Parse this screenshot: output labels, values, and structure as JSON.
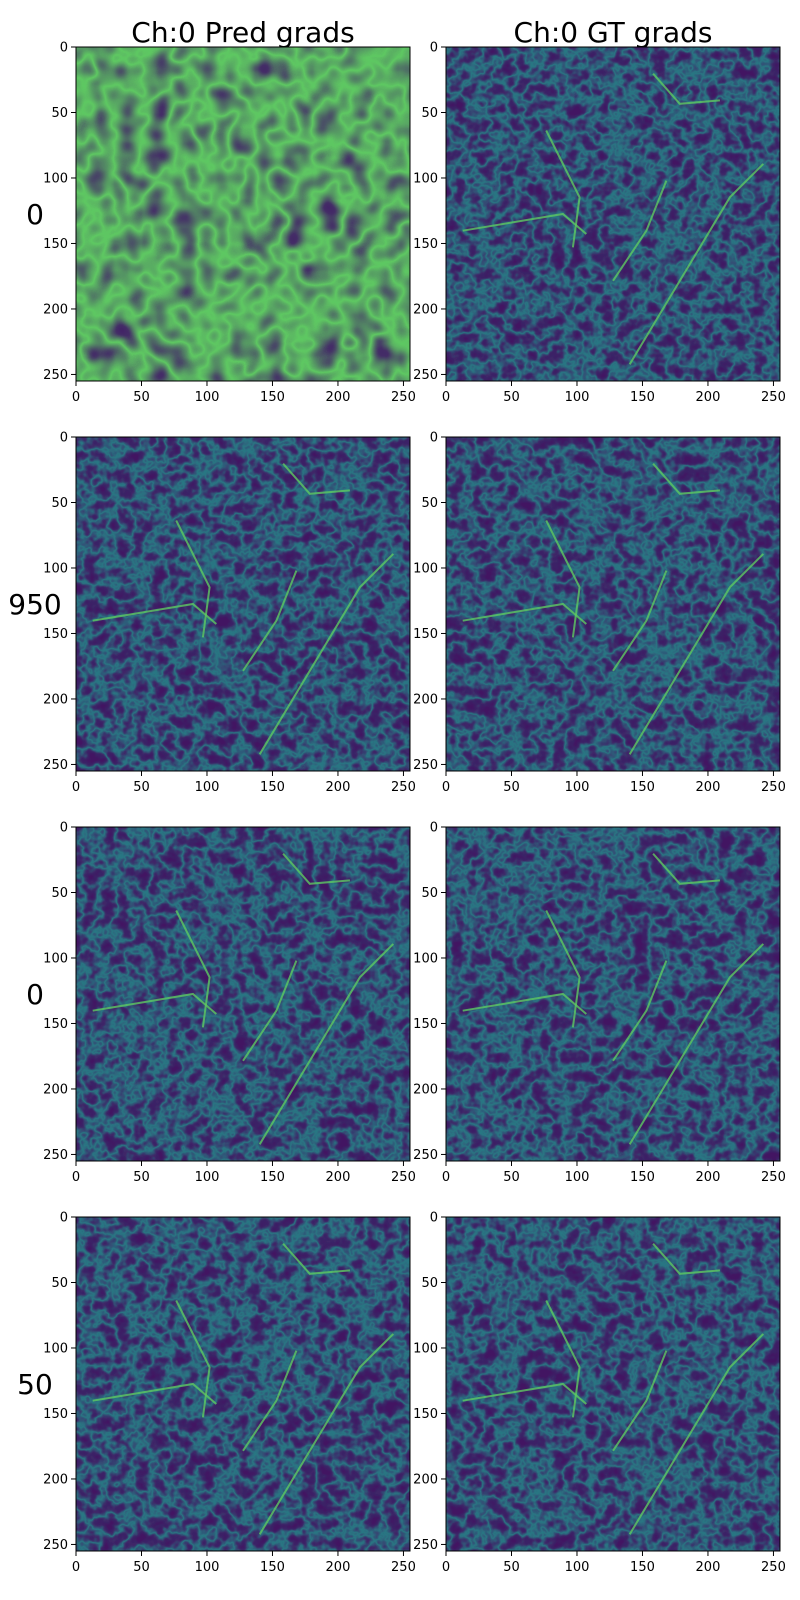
{
  "figure": {
    "column_titles": [
      "Ch:0 Pred grads",
      "Ch:0 GT grads"
    ],
    "row_labels": [
      "0",
      "950",
      "0",
      "50"
    ]
  },
  "chart_data": {
    "type": "heatmap",
    "colormap": "viridis",
    "colormap_stops": [
      "#440154",
      "#3b528b",
      "#21918c",
      "#5ec962",
      "#fde725"
    ],
    "grid": false,
    "xlim": [
      0,
      255
    ],
    "ylim": [
      255,
      0
    ],
    "x_ticks": [
      0,
      50,
      100,
      150,
      200,
      250
    ],
    "y_ticks": [
      0,
      50,
      100,
      150,
      200,
      250
    ],
    "panels": [
      {
        "row": 0,
        "col": 0,
        "title": "Ch:0 Pred grads",
        "row_label": "0",
        "content": "noise"
      },
      {
        "row": 0,
        "col": 1,
        "title": "Ch:0 GT grads",
        "row_label": "0",
        "content": "edges"
      },
      {
        "row": 1,
        "col": 0,
        "row_label": "950",
        "content": "edges"
      },
      {
        "row": 1,
        "col": 1,
        "row_label": "950",
        "content": "edges"
      },
      {
        "row": 2,
        "col": 0,
        "row_label": "0",
        "content": "edges"
      },
      {
        "row": 2,
        "col": 1,
        "row_label": "0",
        "content": "edges"
      },
      {
        "row": 3,
        "col": 0,
        "row_label": "50",
        "content": "edges"
      },
      {
        "row": 3,
        "col": 1,
        "row_label": "50",
        "content": "edges"
      }
    ]
  }
}
